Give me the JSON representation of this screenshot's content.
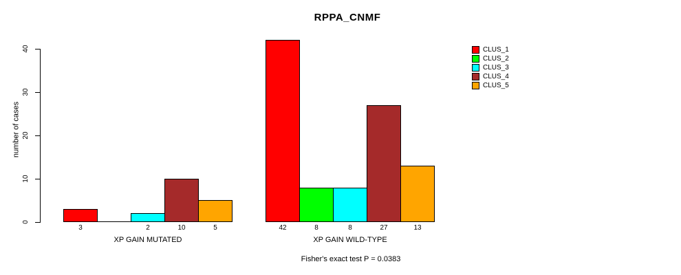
{
  "chart_data": {
    "type": "bar",
    "title": "RPPA_CNMF",
    "xlabel": "",
    "ylabel": "number of cases",
    "groups": [
      "XP GAIN MUTATED",
      "XP GAIN WILD-TYPE"
    ],
    "series": [
      {
        "name": "CLUS_1",
        "color": "#FF0000",
        "values": [
          3,
          42
        ]
      },
      {
        "name": "CLUS_2",
        "color": "#00FF00",
        "values": [
          0,
          8
        ]
      },
      {
        "name": "CLUS_3",
        "color": "#00FFFF",
        "values": [
          2,
          8
        ]
      },
      {
        "name": "CLUS_4",
        "color": "#A52A2A",
        "values": [
          10,
          27
        ]
      },
      {
        "name": "CLUS_5",
        "color": "#FFA500",
        "values": [
          5,
          13
        ]
      }
    ],
    "yticks": [
      0,
      10,
      20,
      30,
      40
    ],
    "ylim": [
      0,
      40
    ],
    "grid": false,
    "bar_value_labels_shown": true,
    "zero_value_labels_hidden": true,
    "legend_position": "top-right",
    "annotation": "Fisher's exact test P = 0.0383"
  },
  "colors": {
    "background": "#FFFFFF",
    "axis": "#000000",
    "bar_border": "#000000",
    "text": "#000000"
  }
}
